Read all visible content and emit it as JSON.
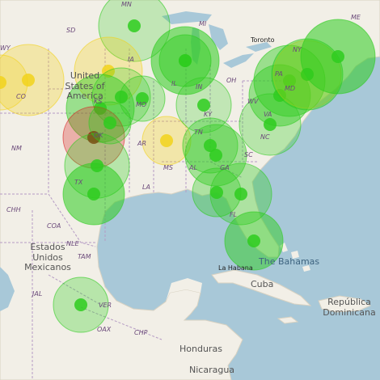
{
  "map": {
    "state_labels": [
      "MN",
      "SD",
      "MI",
      "ME",
      "IA",
      "NY",
      "WY",
      "CO",
      "KS",
      "MO",
      "IL",
      "IN",
      "OH",
      "PA",
      "MD",
      "WV",
      "VA",
      "KY",
      "NC",
      "NM",
      "AR",
      "TN",
      "SC",
      "MS",
      "AL",
      "GA",
      "OK",
      "TX",
      "LA",
      "FL",
      "CHH",
      "COA",
      "NLE",
      "TAM",
      "JAL",
      "VER",
      "OAX",
      "CHP"
    ],
    "city_labels": [
      "Toronto",
      "La Habana"
    ],
    "country_labels": [
      "United States of America",
      "Estados Unidos Mexicanos",
      "Cuba",
      "República Dominicana",
      "Honduras",
      "Nicaragua"
    ],
    "water_labels": [
      "The Bahamas"
    ],
    "colors": {
      "ocean": "#a8c8d8",
      "land": "#f2efe7",
      "border": "#b59bc4",
      "marker_green": "#2ecc1f",
      "marker_yellow": "#f2d21b",
      "marker_red": "#d81f1f"
    }
  }
}
